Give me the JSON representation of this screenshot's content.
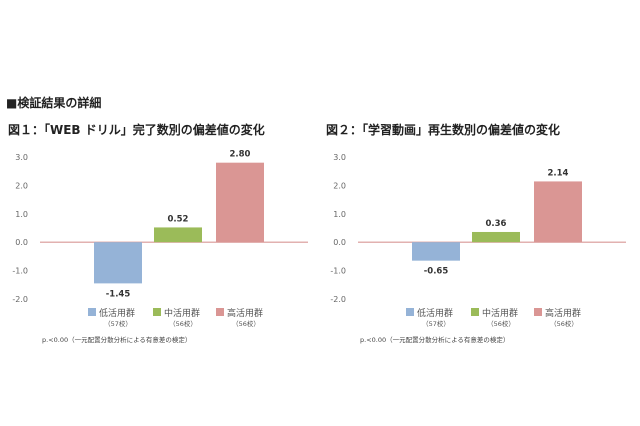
{
  "section_title": "■検証結果の詳細",
  "note": "p.<0.00（一元配置分散分析による有意差の検定）",
  "legend_counts": [
    "（57校）",
    "（56校）",
    "（56校）"
  ],
  "colors": {
    "low": "#95b3d7",
    "mid": "#9bbb59",
    "high": "#da9694",
    "zero_line": "#d99795"
  },
  "chart_data": [
    {
      "type": "bar",
      "title": "図１：「WEB ドリル」完了数別の偏差値の変化",
      "categories": [
        "低活用群",
        "中活用群",
        "高活用群"
      ],
      "values": [
        -1.45,
        0.52,
        2.8
      ],
      "value_labels": [
        "-1.45",
        "0.52",
        "2.80"
      ],
      "ylim": [
        -2.0,
        3.0
      ],
      "yticks": [
        "3.0",
        "2.0",
        "1.0",
        "0.0",
        "-1.0",
        "-2.0"
      ],
      "grid": false,
      "legend": "bottom"
    },
    {
      "type": "bar",
      "title": "図２：「学習動画」再生数別の偏差値の変化",
      "categories": [
        "低活用群",
        "中活用群",
        "高活用群"
      ],
      "values": [
        -0.65,
        0.36,
        2.14
      ],
      "value_labels": [
        "-0.65",
        "0.36",
        "2.14"
      ],
      "ylim": [
        -2.0,
        3.0
      ],
      "yticks": [
        "3.0",
        "2.0",
        "1.0",
        "0.0",
        "-1.0",
        "-2.0"
      ],
      "grid": false,
      "legend": "bottom"
    }
  ]
}
